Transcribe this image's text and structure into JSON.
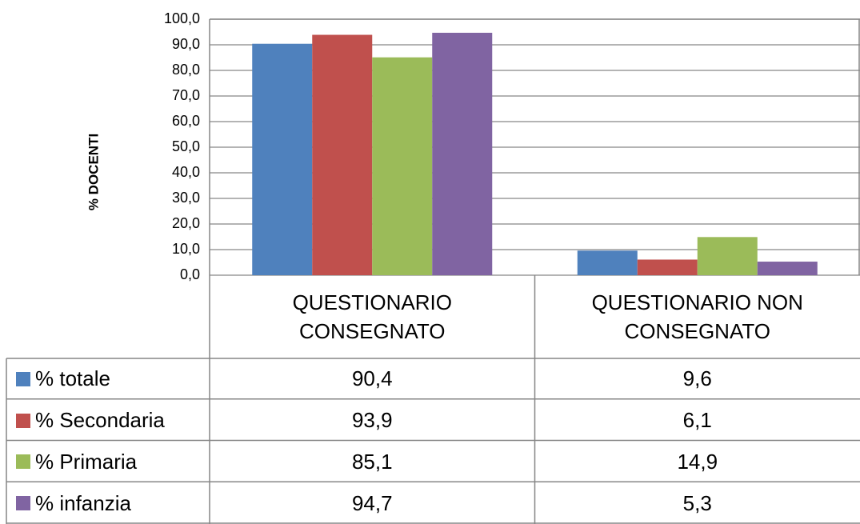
{
  "chart_data": {
    "type": "bar",
    "y_label": "% DOCENTI",
    "categories": [
      "QUESTIONARIO CONSEGNATO",
      "QUESTIONARIO NON CONSEGNATO"
    ],
    "series": [
      {
        "name": "% totale",
        "color": "#4f81bd",
        "values": [
          90.4,
          9.6
        ],
        "value_labels": [
          "90,4",
          "9,6"
        ]
      },
      {
        "name": "% Secondaria",
        "color": "#c0504d",
        "values": [
          93.9,
          6.1
        ],
        "value_labels": [
          "93,9",
          "6,1"
        ]
      },
      {
        "name": "% Primaria",
        "color": "#9bbb59",
        "values": [
          85.1,
          14.9
        ],
        "value_labels": [
          "85,1",
          "14,9"
        ]
      },
      {
        "name": "% infanzia",
        "color": "#8064a2",
        "values": [
          94.7,
          5.3
        ],
        "value_labels": [
          "94,7",
          "5,3"
        ]
      }
    ],
    "ylim": [
      0,
      100
    ],
    "yticks": [
      {
        "value": 0,
        "label": "0,0"
      },
      {
        "value": 10,
        "label": "10,0"
      },
      {
        "value": 20,
        "label": "20,0"
      },
      {
        "value": 30,
        "label": "30,0"
      },
      {
        "value": 40,
        "label": "40,0"
      },
      {
        "value": 50,
        "label": "50,0"
      },
      {
        "value": 60,
        "label": "60,0"
      },
      {
        "value": 70,
        "label": "70,0"
      },
      {
        "value": 80,
        "label": "80,0"
      },
      {
        "value": 90,
        "label": "90,0"
      },
      {
        "value": 100,
        "label": "100,0"
      }
    ],
    "grid": true
  }
}
